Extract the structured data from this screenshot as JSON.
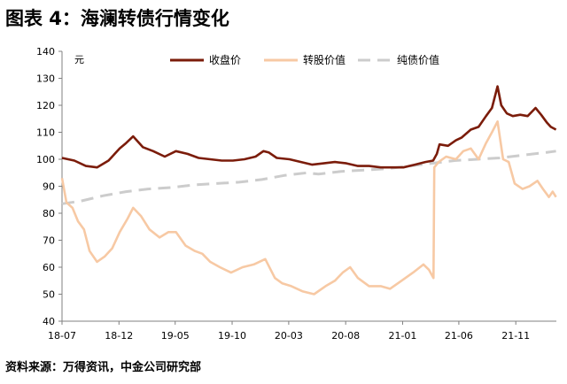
{
  "figure": {
    "title": "图表 4：海澜转债行情变化",
    "source": "资料来源：万得资讯，中金公司研究部"
  },
  "chart_data": {
    "type": "line",
    "yunit": "元",
    "ylim": [
      40,
      140
    ],
    "yticks": [
      40,
      50,
      60,
      70,
      80,
      90,
      100,
      110,
      120,
      130,
      140
    ],
    "xlim": [
      "2018-07-13",
      "2022-03-02"
    ],
    "xticks": [
      {
        "date": "2018-07-13",
        "label": "18-07"
      },
      {
        "date": "2018-12-13",
        "label": "18-12"
      },
      {
        "date": "2019-05-13",
        "label": "19-05"
      },
      {
        "date": "2019-10-13",
        "label": "19-10"
      },
      {
        "date": "2020-03-13",
        "label": "20-03"
      },
      {
        "date": "2020-08-13",
        "label": "20-08"
      },
      {
        "date": "2021-01-13",
        "label": "21-01"
      },
      {
        "date": "2021-06-13",
        "label": "21-06"
      },
      {
        "date": "2021-11-13",
        "label": "21-11"
      }
    ],
    "grid": false,
    "legend_position": "top",
    "colors": {
      "close": "#7b1c0a",
      "conversion": "#f7c9a4",
      "bond": "#cccccc"
    },
    "series": [
      {
        "name": "收盘价",
        "style": "solid",
        "points": [
          [
            "2018-07-13",
            100.5
          ],
          [
            "2018-08-15",
            99.5
          ],
          [
            "2018-09-15",
            97.5
          ],
          [
            "2018-10-15",
            97
          ],
          [
            "2018-11-15",
            99.5
          ],
          [
            "2018-12-15",
            104
          ],
          [
            "2019-01-01",
            106
          ],
          [
            "2019-01-20",
            108.5
          ],
          [
            "2019-02-15",
            104.5
          ],
          [
            "2019-03-15",
            103
          ],
          [
            "2019-04-15",
            101
          ],
          [
            "2019-05-15",
            103
          ],
          [
            "2019-06-15",
            102
          ],
          [
            "2019-07-15",
            100.5
          ],
          [
            "2019-08-15",
            100
          ],
          [
            "2019-09-15",
            99.5
          ],
          [
            "2019-10-15",
            99.5
          ],
          [
            "2019-11-15",
            100
          ],
          [
            "2019-12-15",
            101
          ],
          [
            "2020-01-05",
            103
          ],
          [
            "2020-01-20",
            102.5
          ],
          [
            "2020-02-10",
            100.5
          ],
          [
            "2020-03-15",
            100
          ],
          [
            "2020-04-15",
            99
          ],
          [
            "2020-05-15",
            98
          ],
          [
            "2020-06-15",
            98.5
          ],
          [
            "2020-07-15",
            99
          ],
          [
            "2020-08-15",
            98.5
          ],
          [
            "2020-09-15",
            97.5
          ],
          [
            "2020-10-15",
            97.5
          ],
          [
            "2020-11-15",
            97
          ],
          [
            "2020-12-15",
            97
          ],
          [
            "2021-01-15",
            97
          ],
          [
            "2021-02-15",
            98
          ],
          [
            "2021-03-15",
            99
          ],
          [
            "2021-04-05",
            99.5
          ],
          [
            "2021-04-15",
            102
          ],
          [
            "2021-04-22",
            105.5
          ],
          [
            "2021-05-15",
            105
          ],
          [
            "2021-06-05",
            107
          ],
          [
            "2021-06-20",
            108
          ],
          [
            "2021-07-15",
            111
          ],
          [
            "2021-08-05",
            112
          ],
          [
            "2021-08-25",
            116
          ],
          [
            "2021-09-10",
            119
          ],
          [
            "2021-09-25",
            127
          ],
          [
            "2021-10-05",
            120
          ],
          [
            "2021-10-20",
            117
          ],
          [
            "2021-11-05",
            116
          ],
          [
            "2021-11-25",
            116.5
          ],
          [
            "2021-12-15",
            116
          ],
          [
            "2022-01-05",
            119
          ],
          [
            "2022-01-20",
            116.5
          ],
          [
            "2022-02-05",
            113.5
          ],
          [
            "2022-02-15",
            112
          ],
          [
            "2022-03-01",
            111
          ]
        ]
      },
      {
        "name": "转股价值",
        "style": "solid",
        "points": [
          [
            "2018-07-13",
            93
          ],
          [
            "2018-07-25",
            84
          ],
          [
            "2018-08-10",
            82
          ],
          [
            "2018-08-25",
            77
          ],
          [
            "2018-09-10",
            74
          ],
          [
            "2018-09-25",
            66
          ],
          [
            "2018-10-15",
            62
          ],
          [
            "2018-11-05",
            64
          ],
          [
            "2018-11-25",
            67
          ],
          [
            "2018-12-15",
            73
          ],
          [
            "2019-01-05",
            78
          ],
          [
            "2019-01-20",
            82
          ],
          [
            "2019-02-10",
            79
          ],
          [
            "2019-03-05",
            74
          ],
          [
            "2019-04-01",
            71
          ],
          [
            "2019-04-25",
            73
          ],
          [
            "2019-05-15",
            73
          ],
          [
            "2019-06-10",
            68
          ],
          [
            "2019-07-05",
            66
          ],
          [
            "2019-07-25",
            65
          ],
          [
            "2019-08-15",
            62
          ],
          [
            "2019-09-10",
            60
          ],
          [
            "2019-10-10",
            58
          ],
          [
            "2019-11-10",
            60
          ],
          [
            "2019-12-10",
            61
          ],
          [
            "2020-01-10",
            63
          ],
          [
            "2020-02-05",
            56
          ],
          [
            "2020-02-25",
            54
          ],
          [
            "2020-03-20",
            53
          ],
          [
            "2020-04-20",
            51
          ],
          [
            "2020-05-20",
            50
          ],
          [
            "2020-06-20",
            53
          ],
          [
            "2020-07-15",
            55
          ],
          [
            "2020-08-05",
            58
          ],
          [
            "2020-08-25",
            60
          ],
          [
            "2020-09-15",
            56
          ],
          [
            "2020-10-15",
            53
          ],
          [
            "2020-11-15",
            53
          ],
          [
            "2020-12-10",
            52
          ],
          [
            "2021-01-10",
            55
          ],
          [
            "2021-02-10",
            58
          ],
          [
            "2021-03-10",
            61
          ],
          [
            "2021-03-25",
            59
          ],
          [
            "2021-04-06",
            56
          ],
          [
            "2021-04-08",
            97
          ],
          [
            "2021-04-20",
            99
          ],
          [
            "2021-05-10",
            101
          ],
          [
            "2021-06-05",
            100
          ],
          [
            "2021-06-25",
            103
          ],
          [
            "2021-07-15",
            104
          ],
          [
            "2021-08-05",
            100
          ],
          [
            "2021-08-25",
            106
          ],
          [
            "2021-09-10",
            110
          ],
          [
            "2021-09-25",
            114
          ],
          [
            "2021-10-10",
            100
          ],
          [
            "2021-10-25",
            99
          ],
          [
            "2021-11-10",
            91
          ],
          [
            "2021-12-01",
            89
          ],
          [
            "2021-12-20",
            90
          ],
          [
            "2022-01-10",
            92
          ],
          [
            "2022-01-25",
            89
          ],
          [
            "2022-02-10",
            86
          ],
          [
            "2022-02-20",
            88
          ],
          [
            "2022-03-01",
            86
          ]
        ]
      },
      {
        "name": "纯债价值",
        "style": "dashed",
        "points": [
          [
            "2018-07-13",
            83.5
          ],
          [
            "2018-09-01",
            84.5
          ],
          [
            "2018-11-01",
            86.5
          ],
          [
            "2019-01-01",
            88
          ],
          [
            "2019-03-01",
            89
          ],
          [
            "2019-05-01",
            89.5
          ],
          [
            "2019-07-01",
            90.5
          ],
          [
            "2019-09-01",
            91
          ],
          [
            "2019-11-01",
            91.5
          ],
          [
            "2020-01-01",
            92.5
          ],
          [
            "2020-03-01",
            94
          ],
          [
            "2020-05-01",
            95
          ],
          [
            "2020-06-01",
            94.5
          ],
          [
            "2020-08-01",
            95.5
          ],
          [
            "2020-10-01",
            96
          ],
          [
            "2020-12-01",
            96.5
          ],
          [
            "2021-02-01",
            97.5
          ],
          [
            "2021-04-01",
            98.5
          ],
          [
            "2021-06-01",
            99.5
          ],
          [
            "2021-08-01",
            100
          ],
          [
            "2021-10-01",
            100.5
          ],
          [
            "2021-12-01",
            101.5
          ],
          [
            "2022-02-01",
            102.5
          ],
          [
            "2022-03-01",
            103
          ]
        ]
      }
    ]
  }
}
